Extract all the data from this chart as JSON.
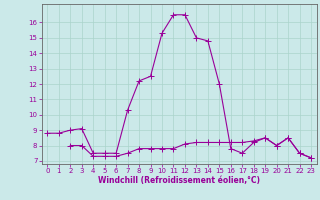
{
  "title": "",
  "xlabel": "Windchill (Refroidissement éolien,°C)",
  "ylabel": "",
  "bg_color": "#cbe9e9",
  "grid_color": "#aad4cc",
  "line_color": "#990099",
  "spine_color": "#666666",
  "xlim": [
    -0.5,
    23.5
  ],
  "ylim": [
    6.8,
    17.2
  ],
  "yticks": [
    7,
    8,
    9,
    10,
    11,
    12,
    13,
    14,
    15,
    16
  ],
  "xticks": [
    0,
    1,
    2,
    3,
    4,
    5,
    6,
    7,
    8,
    9,
    10,
    11,
    12,
    13,
    14,
    15,
    16,
    17,
    18,
    19,
    20,
    21,
    22,
    23
  ],
  "line1_x": [
    0,
    1,
    2,
    3,
    4,
    5,
    6,
    7,
    8,
    9,
    10,
    11,
    12,
    13,
    14,
    15,
    16,
    17,
    18,
    19,
    20,
    21,
    22,
    23
  ],
  "line1_y": [
    8.8,
    8.8,
    9.0,
    9.1,
    7.5,
    7.5,
    7.5,
    10.3,
    12.2,
    12.5,
    15.3,
    16.5,
    16.5,
    15.0,
    14.8,
    12.0,
    7.8,
    7.5,
    8.2,
    8.5,
    8.0,
    8.5,
    7.5,
    7.2
  ],
  "line2_x": [
    2,
    3,
    4,
    5,
    6,
    7,
    8,
    9,
    10,
    11,
    12,
    13,
    14,
    15,
    16,
    17,
    18,
    19,
    20,
    21,
    22,
    23
  ],
  "line2_y": [
    8.0,
    8.0,
    7.3,
    7.3,
    7.3,
    7.5,
    7.8,
    7.8,
    7.8,
    7.8,
    8.1,
    8.2,
    8.2,
    8.2,
    8.2,
    8.2,
    8.3,
    8.5,
    8.0,
    8.5,
    7.5,
    7.2
  ],
  "marker": "+",
  "markersize": 4,
  "linewidth": 0.8,
  "tick_fontsize": 5,
  "xlabel_fontsize": 5.5
}
